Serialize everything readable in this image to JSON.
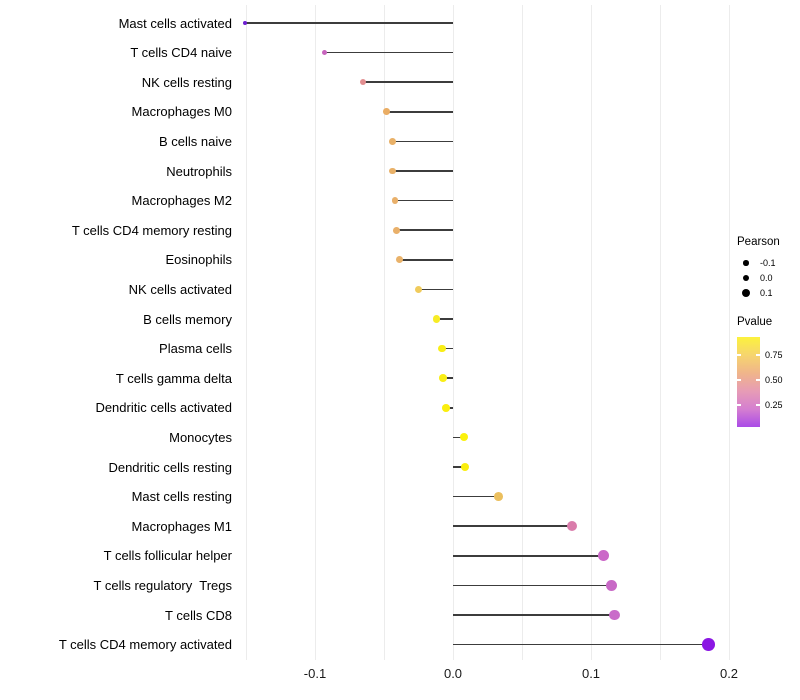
{
  "chart_data": {
    "type": "scatter",
    "style": "lollipop",
    "title": "",
    "xlabel": "",
    "ylabel": "",
    "xlim": [
      -0.156,
      0.205
    ],
    "x_ticks": [
      -0.1,
      0.0,
      0.1,
      0.2
    ],
    "x_tick_labels": [
      "-0.1",
      "0.0",
      "0.1",
      "0.2"
    ],
    "grid": "vertical gridlines every 0.05, light gray, white background",
    "gridline_step": 0.05,
    "gridline_min": -0.15,
    "gridline_max": 0.2,
    "rows": [
      {
        "label": "Mast cells activated",
        "pearson": -0.151,
        "color": "#6e1fd1"
      },
      {
        "label": "T cells CD4 naive",
        "pearson": -0.093,
        "color": "#c764bd"
      },
      {
        "label": "NK cells resting",
        "pearson": -0.065,
        "color": "#e28e90"
      },
      {
        "label": "Macrophages M0",
        "pearson": -0.048,
        "color": "#eaad64"
      },
      {
        "label": "B cells naive",
        "pearson": -0.044,
        "color": "#e9b168"
      },
      {
        "label": "Neutrophils",
        "pearson": -0.044,
        "color": "#e9b168"
      },
      {
        "label": "Macrophages M2",
        "pearson": -0.042,
        "color": "#e9b06a"
      },
      {
        "label": "T cells CD4 memory resting",
        "pearson": -0.041,
        "color": "#e9b06a"
      },
      {
        "label": "Eosinophils",
        "pearson": -0.039,
        "color": "#e9b26a"
      },
      {
        "label": "NK cells activated",
        "pearson": -0.025,
        "color": "#f0cb5c"
      },
      {
        "label": "B cells memory",
        "pearson": -0.012,
        "color": "#f7ec25"
      },
      {
        "label": "Plasma cells",
        "pearson": -0.008,
        "color": "#f9ee16"
      },
      {
        "label": "T cells gamma delta",
        "pearson": -0.007,
        "color": "#f9ee16"
      },
      {
        "label": "Dendritic cells activated",
        "pearson": -0.005,
        "color": "#faee0e"
      },
      {
        "label": "Monocytes",
        "pearson": 0.008,
        "color": "#fbf10b"
      },
      {
        "label": "Dendritic cells resting",
        "pearson": 0.009,
        "color": "#faee0e"
      },
      {
        "label": "Mast cells resting",
        "pearson": 0.033,
        "color": "#ebbf5e"
      },
      {
        "label": "Macrophages M1",
        "pearson": 0.086,
        "color": "#da7cab"
      },
      {
        "label": "T cells follicular helper",
        "pearson": 0.109,
        "color": "#cb68c8"
      },
      {
        "label": "T cells regulatory  Tregs",
        "pearson": 0.115,
        "color": "#c869c6"
      },
      {
        "label": "T cells CD8",
        "pearson": 0.117,
        "color": "#c96cc9"
      },
      {
        "label": "T cells CD4 memory activated",
        "pearson": 0.185,
        "color": "#8b17e3"
      }
    ],
    "legend": {
      "position": "right",
      "pearson": {
        "title": "Pearson",
        "items": [
          {
            "label": "-0.1",
            "value": -0.1,
            "diameter": 5.5
          },
          {
            "label": "0.0",
            "value": 0.0,
            "diameter": 6.8
          },
          {
            "label": "0.1",
            "value": 0.1,
            "diameter": 8.0
          }
        ]
      },
      "pvalue": {
        "title": "Pvalue",
        "ticks": [
          0.75,
          0.5,
          0.25
        ],
        "tick_labels": [
          "0.75",
          "0.50",
          "0.25"
        ],
        "gradient_top_to_bottom": [
          "#fcf23d",
          "#f6d56e",
          "#f0b58a",
          "#e79cb5",
          "#d57fd0",
          "#aa4be7"
        ],
        "range_top": 0.93,
        "range_bottom": 0.03
      }
    },
    "stem_color": "#3c3c3c"
  }
}
